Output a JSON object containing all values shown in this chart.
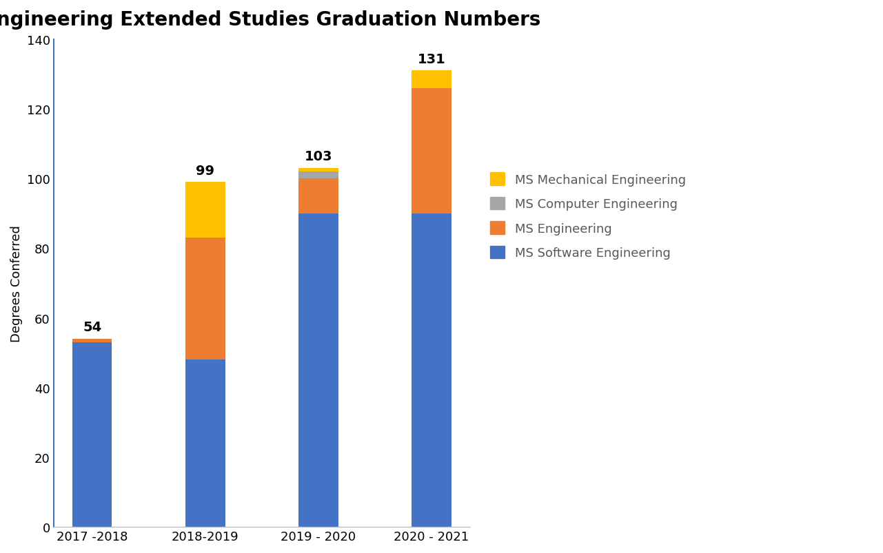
{
  "title": "Engineering Extended Studies Graduation Numbers",
  "ylabel": "Degrees Conferred",
  "categories": [
    "2017 -2018",
    "2018-2019",
    "2019 - 2020",
    "2020 - 2021"
  ],
  "totals": [
    54,
    99,
    103,
    131
  ],
  "series": {
    "MS Software Engineering": [
      53,
      48,
      90,
      90
    ],
    "MS Engineering": [
      1,
      35,
      10,
      36
    ],
    "MS Computer Engineering": [
      0,
      0,
      2,
      0
    ],
    "MS Mechanical Engineering": [
      0,
      16,
      1,
      5
    ]
  },
  "colors": {
    "MS Software Engineering": "#4472C4",
    "MS Engineering": "#ED7D31",
    "MS Computer Engineering": "#A5A5A5",
    "MS Mechanical Engineering": "#FFC000"
  },
  "ylim": [
    0,
    140
  ],
  "yticks": [
    0,
    20,
    40,
    60,
    80,
    100,
    120,
    140
  ],
  "title_fontsize": 20,
  "label_fontsize": 13,
  "tick_fontsize": 13,
  "legend_fontsize": 13,
  "annotation_fontsize": 14,
  "bar_width": 0.35,
  "left_spine_color": "#4472C4",
  "bottom_spine_color": "#c0c0c0",
  "legend_text_color": "#595959",
  "background_color": "#ffffff"
}
